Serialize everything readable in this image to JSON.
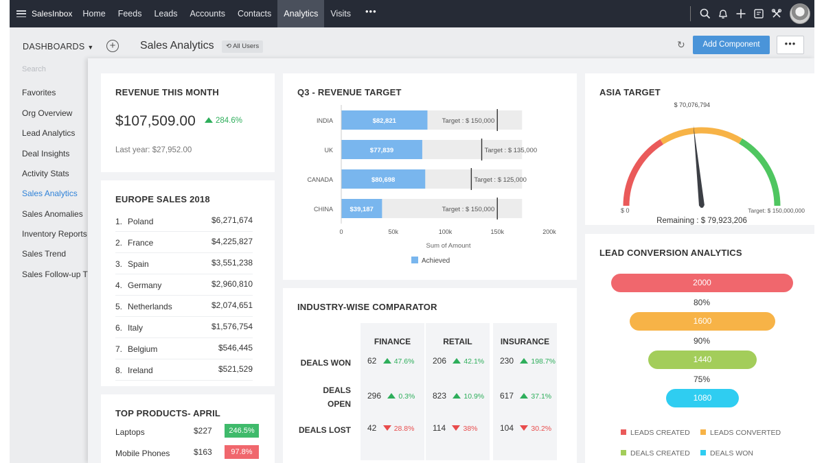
{
  "app": {
    "brand": "SalesInbox",
    "nav_tabs": [
      "Home",
      "Feeds",
      "Leads",
      "Accounts",
      "Contacts",
      "Analytics",
      "Visits"
    ],
    "nav_more": "•••"
  },
  "header": {
    "dashboards_label": "DASHBOARDS",
    "title": "Sales Analytics",
    "all_users": "All Users",
    "add_component": "Add Component",
    "more": "•••"
  },
  "sidebar": {
    "search_placeholder": "Search",
    "items": [
      "Favorites",
      "Org Overview",
      "Lead Analytics",
      "Deal Insights",
      "Activity Stats",
      "Sales Analytics",
      "Sales Anomalies",
      "Inventory Reports",
      "Sales Trend",
      "Sales Follow-up T"
    ],
    "active_index": 5
  },
  "revenue": {
    "title": "REVENUE THIS MONTH",
    "value": "$107,509.00",
    "change": "284.6%",
    "last_year": "Last year: $27,952.00"
  },
  "europe": {
    "title": "EUROPE SALES 2018",
    "rows": [
      {
        "rank": "1.",
        "name": "Poland",
        "value": "$6,271,674"
      },
      {
        "rank": "2.",
        "name": "France",
        "value": "$4,225,827"
      },
      {
        "rank": "3.",
        "name": "Spain",
        "value": "$3,551,238"
      },
      {
        "rank": "4.",
        "name": "Germany",
        "value": "$2,960,810"
      },
      {
        "rank": "5.",
        "name": "Netherlands",
        "value": "$2,074,651"
      },
      {
        "rank": "6.",
        "name": "Italy",
        "value": "$1,576,754"
      },
      {
        "rank": "7.",
        "name": "Belgium",
        "value": "$546,445"
      },
      {
        "rank": "8.",
        "name": "Ireland",
        "value": "$521,529"
      }
    ]
  },
  "top_products": {
    "title": "TOP PRODUCTS- APRIL",
    "rows": [
      {
        "name": "Laptops",
        "price": "$227",
        "change": "246.5%",
        "color": "#3fba6b"
      },
      {
        "name": "Mobile Phones",
        "price": "$163",
        "change": "97.8%",
        "color": "#f0676d"
      }
    ]
  },
  "q3": {
    "title": "Q3 - REVENUE TARGET",
    "xlabel": "Sum of Amount",
    "legend": "Achieved",
    "bar_color": "#79b6ee"
  },
  "chart_data": {
    "type": "bar",
    "orientation": "horizontal",
    "title": "Q3 - REVENUE TARGET",
    "xlabel": "Sum of Amount",
    "categories": [
      "INDIA",
      "UK",
      "CANADA",
      "CHINA"
    ],
    "series": [
      {
        "name": "Achieved",
        "values": [
          82821,
          77839,
          80698,
          39187
        ]
      }
    ],
    "value_labels": [
      "$82,821",
      "$77,839",
      "$80,698",
      "$39,187"
    ],
    "targets": [
      150000,
      135000,
      125000,
      150000
    ],
    "target_labels": [
      "Target : $ 150,000",
      "Target : $ 135,000",
      "Target : $ 125,000",
      "Target : $ 150,000"
    ],
    "xlim": [
      0,
      200000
    ],
    "xticks": [
      0,
      50000,
      100000,
      150000,
      200000
    ],
    "xtick_labels": [
      "0",
      "50k",
      "100k",
      "150k",
      "200k"
    ],
    "track_max": 150000,
    "legend_position": "bottom",
    "grid": false
  },
  "asia": {
    "title": "ASIA TARGET",
    "current_label": "$ 70,076,794",
    "min_label": "$ 0",
    "max_label": "Target: $ 150,000,000",
    "remaining": "Remaining : $ 79,923,206",
    "current": 70076794,
    "max": 150000000,
    "colors": [
      "#ea5a5a",
      "#f7b347",
      "#4fc660"
    ]
  },
  "comparator": {
    "title": "INDUSTRY-WISE COMPARATOR",
    "columns": [
      "FINANCE",
      "RETAIL",
      "INSURANCE"
    ],
    "rows": [
      {
        "label": [
          "DEALS WON"
        ],
        "cells": [
          {
            "value": "62",
            "change": "47.6%",
            "dir": "up"
          },
          {
            "value": "206",
            "change": "42.1%",
            "dir": "up"
          },
          {
            "value": "230",
            "change": "198.7%",
            "dir": "up"
          }
        ]
      },
      {
        "label": [
          "DEALS",
          "OPEN"
        ],
        "cells": [
          {
            "value": "296",
            "change": "0.3%",
            "dir": "up"
          },
          {
            "value": "823",
            "change": "10.9%",
            "dir": "up"
          },
          {
            "value": "617",
            "change": "37.1%",
            "dir": "up"
          }
        ]
      },
      {
        "label": [
          "DEALS LOST"
        ],
        "cells": [
          {
            "value": "42",
            "change": "28.8%",
            "dir": "down"
          },
          {
            "value": "114",
            "change": "38%",
            "dir": "down"
          },
          {
            "value": "104",
            "change": "30.2%",
            "dir": "down"
          }
        ]
      }
    ]
  },
  "lead_conversion": {
    "title": "LEAD CONVERSION ANALYTICS",
    "stages": [
      {
        "value": "2000",
        "color": "#f0676d"
      },
      {
        "value": "1600",
        "color": "#f7b347"
      },
      {
        "value": "1440",
        "color": "#a3cd5a"
      },
      {
        "value": "1080",
        "color": "#2fcdf1"
      }
    ],
    "ratios": [
      "80%",
      "90%",
      "75%"
    ],
    "legend": [
      {
        "label": "LEADS CREATED",
        "color": "#ea5a5a"
      },
      {
        "label": "LEADS CONVERTED",
        "color": "#f7b347"
      },
      {
        "label": "DEALS CREATED",
        "color": "#a3cd5a"
      },
      {
        "label": "DEALS WON",
        "color": "#2fcdf1"
      }
    ]
  }
}
